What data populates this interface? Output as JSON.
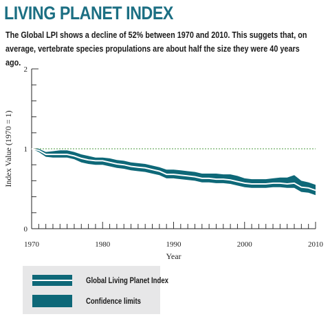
{
  "page": {
    "title": "LIVING PLANET INDEX",
    "subtitle": "The Global LPI shows a decline of 52% between 1970 and 2010. This suggets that, on average, vertebrate species propulations are about half the size they were 40 years ago."
  },
  "colors": {
    "title": "#1c6f83",
    "band": "#0e6878",
    "index_line": "#ffffff",
    "baseline": "#4a9a3c",
    "legend_bg": "#e7e7e8"
  },
  "chart_data": {
    "type": "line",
    "xlabel": "Year",
    "ylabel": "Index Value (1970 = 1)",
    "xlim": [
      1970,
      2010
    ],
    "ylim": [
      0,
      2
    ],
    "x_ticks": [
      1970,
      1980,
      1990,
      2000,
      2010
    ],
    "y_ticks": [
      0,
      1,
      2
    ],
    "reference_line": 1,
    "x": [
      1970,
      1971,
      1972,
      1973,
      1974,
      1975,
      1976,
      1977,
      1978,
      1979,
      1980,
      1981,
      1982,
      1983,
      1984,
      1985,
      1986,
      1987,
      1988,
      1989,
      1990,
      1991,
      1992,
      1993,
      1994,
      1995,
      1996,
      1997,
      1998,
      1999,
      2000,
      2001,
      2002,
      2003,
      2004,
      2005,
      2006,
      2007,
      2008,
      2009,
      2010
    ],
    "series": [
      {
        "name": "Global Living Planet Index",
        "values": [
          1.0,
          0.98,
          0.93,
          0.93,
          0.93,
          0.93,
          0.91,
          0.88,
          0.86,
          0.85,
          0.85,
          0.83,
          0.81,
          0.8,
          0.78,
          0.77,
          0.76,
          0.74,
          0.72,
          0.68,
          0.68,
          0.67,
          0.66,
          0.65,
          0.63,
          0.63,
          0.62,
          0.62,
          0.61,
          0.59,
          0.57,
          0.56,
          0.56,
          0.56,
          0.57,
          0.57,
          0.56,
          0.57,
          0.52,
          0.51,
          0.48
        ]
      },
      {
        "name": "Confidence limits (upper)",
        "values": [
          1.0,
          1.0,
          0.96,
          0.97,
          0.98,
          0.98,
          0.96,
          0.93,
          0.91,
          0.89,
          0.89,
          0.88,
          0.86,
          0.85,
          0.83,
          0.82,
          0.81,
          0.79,
          0.77,
          0.74,
          0.74,
          0.73,
          0.72,
          0.71,
          0.69,
          0.69,
          0.69,
          0.68,
          0.68,
          0.66,
          0.63,
          0.62,
          0.62,
          0.62,
          0.63,
          0.64,
          0.64,
          0.67,
          0.6,
          0.58,
          0.55
        ]
      },
      {
        "name": "Confidence limits (lower)",
        "values": [
          1.0,
          0.96,
          0.9,
          0.89,
          0.89,
          0.89,
          0.87,
          0.83,
          0.81,
          0.8,
          0.8,
          0.78,
          0.76,
          0.75,
          0.73,
          0.72,
          0.71,
          0.69,
          0.67,
          0.63,
          0.63,
          0.62,
          0.61,
          0.6,
          0.58,
          0.58,
          0.57,
          0.57,
          0.56,
          0.54,
          0.52,
          0.51,
          0.51,
          0.51,
          0.52,
          0.52,
          0.51,
          0.51,
          0.46,
          0.45,
          0.42
        ]
      }
    ]
  },
  "legend": {
    "items": [
      {
        "label": "Global Living Planet Index"
      },
      {
        "label": "Confidence limits"
      }
    ]
  }
}
